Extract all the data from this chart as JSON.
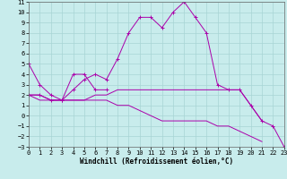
{
  "xlabel": "Windchill (Refroidissement éolien,°C)",
  "background_color": "#c8ecec",
  "grid_color": "#a8d4d4",
  "line_color": "#aa00aa",
  "x_min": 0,
  "x_max": 23,
  "y_min": -3,
  "y_max": 11,
  "lines": [
    {
      "x": [
        0,
        1,
        2,
        3,
        4,
        5,
        6,
        7
      ],
      "y": [
        5,
        3,
        2,
        1.5,
        4,
        4,
        2.5,
        2.5
      ],
      "marker": "+"
    },
    {
      "x": [
        0,
        1,
        2,
        3,
        4,
        5,
        6,
        7,
        8,
        9,
        10,
        11,
        12,
        13,
        14,
        15,
        16,
        17,
        18,
        19,
        20,
        21,
        22,
        23
      ],
      "y": [
        2,
        2,
        1.5,
        1.5,
        2.5,
        3.5,
        4,
        3.5,
        5.5,
        8,
        9.5,
        9.5,
        8.5,
        10,
        11,
        9.5,
        8,
        3,
        2.5,
        2.5,
        1,
        -0.5,
        -1,
        -3
      ],
      "marker": "+"
    },
    {
      "x": [
        0,
        1,
        2,
        3,
        4,
        5,
        6,
        7,
        8,
        9,
        10,
        11,
        12,
        13,
        14,
        15,
        16,
        17,
        18,
        19,
        20,
        21
      ],
      "y": [
        2,
        2,
        1.5,
        1.5,
        1.5,
        1.5,
        2,
        2,
        2.5,
        2.5,
        2.5,
        2.5,
        2.5,
        2.5,
        2.5,
        2.5,
        2.5,
        2.5,
        2.5,
        2.5,
        1,
        -0.5
      ],
      "marker": null
    },
    {
      "x": [
        0,
        1,
        2,
        3,
        4,
        5,
        6,
        7,
        8,
        9,
        10,
        11,
        12,
        13,
        14,
        15,
        16,
        17,
        18,
        19,
        20,
        21
      ],
      "y": [
        2,
        1.5,
        1.5,
        1.5,
        1.5,
        1.5,
        1.5,
        1.5,
        1,
        1,
        0.5,
        0,
        -0.5,
        -0.5,
        -0.5,
        -0.5,
        -0.5,
        -1,
        -1,
        -1.5,
        -2,
        -2.5
      ],
      "marker": null
    }
  ],
  "tick_fontsize": 5,
  "label_fontsize": 5.5,
  "yticks": [
    -3,
    -2,
    -1,
    0,
    1,
    2,
    3,
    4,
    5,
    6,
    7,
    8,
    9,
    10,
    11
  ],
  "xticks": [
    0,
    1,
    2,
    3,
    4,
    5,
    6,
    7,
    8,
    9,
    10,
    11,
    12,
    13,
    14,
    15,
    16,
    17,
    18,
    19,
    20,
    21,
    22,
    23
  ]
}
